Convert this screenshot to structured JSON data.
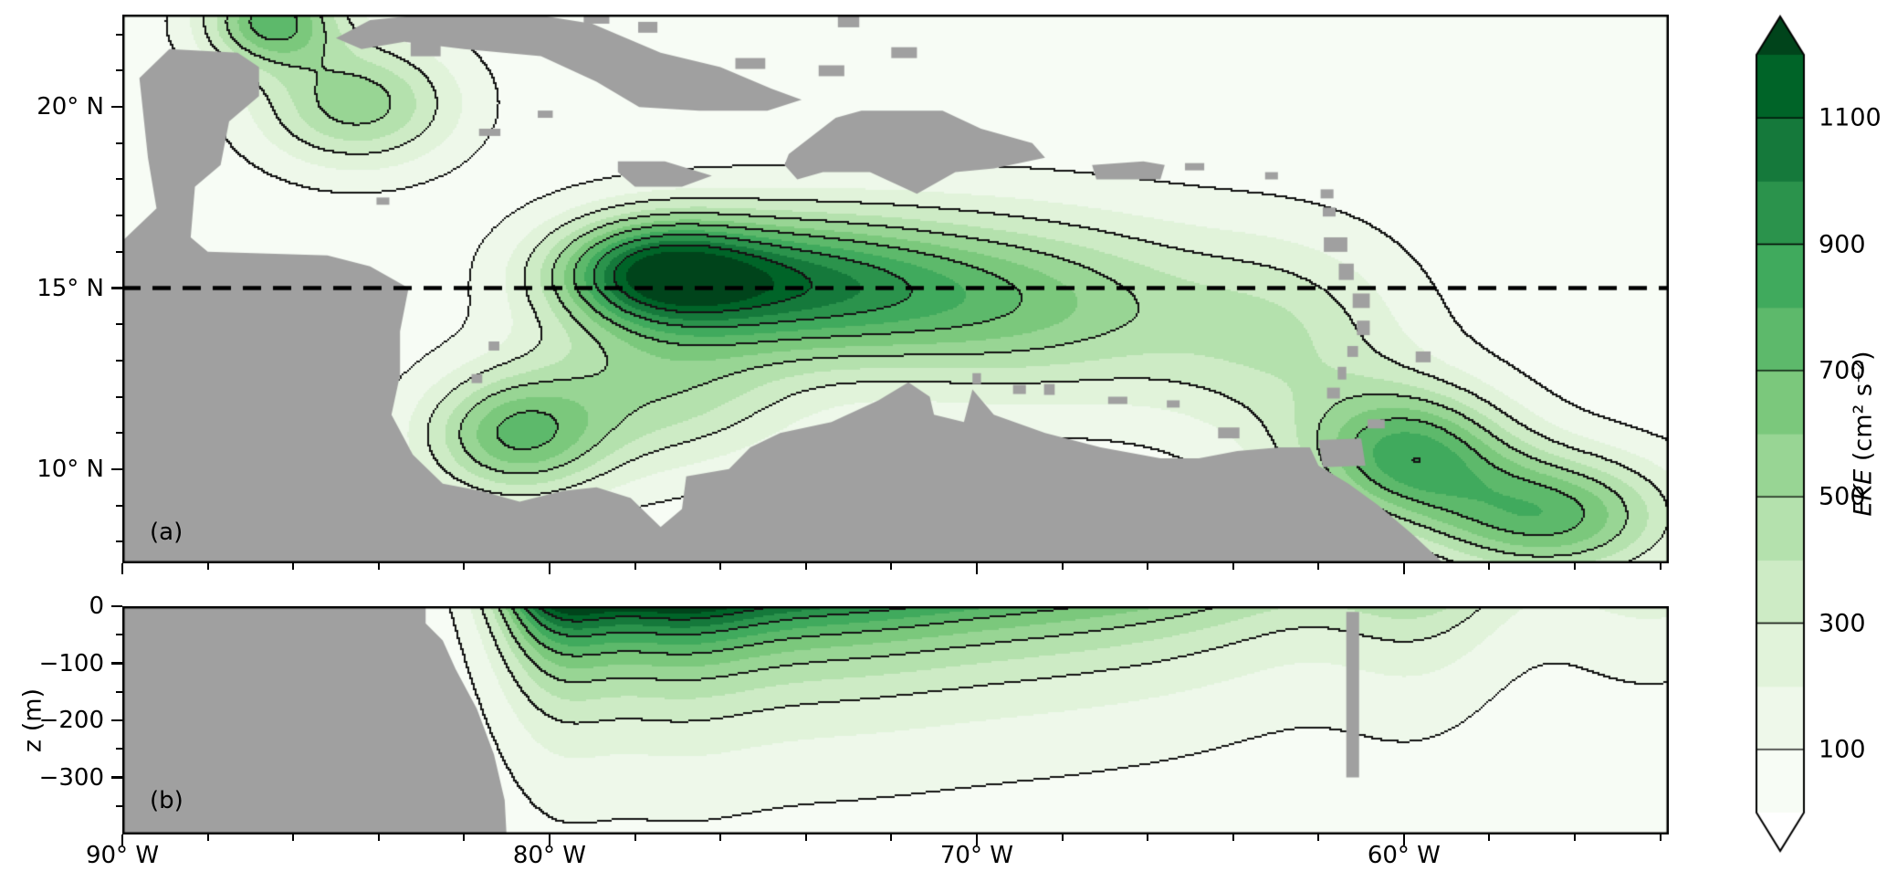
{
  "panels": {
    "a_label": "(a)",
    "b_label": "(b)"
  },
  "axes": {
    "section_y_label": "z (m)"
  },
  "colorbar": {
    "label_variable": "EKE",
    "label_units": " (cm²  s⁻²)",
    "tick_values": [
      1100,
      900,
      700,
      500,
      300,
      100
    ],
    "tick_labels": [
      "1100",
      "900",
      "700",
      "500",
      "300",
      "100"
    ],
    "value_range": [
      0,
      1200
    ],
    "band_colors": [
      "#f7fcf5",
      "#eef8ea",
      "#e1f3da",
      "#cdebc5",
      "#b4e1ad",
      "#98d594",
      "#7bc87c",
      "#5db96b",
      "#40aa5d",
      "#2b934c",
      "#15793b",
      "#006428"
    ],
    "over_color": "#00441b",
    "under_color": "#ffffff",
    "land_color": "#a0a0a0",
    "contour_line_color": "#141414"
  },
  "chart_data": [
    {
      "id": "map",
      "type": "heatmap",
      "title": "(a)",
      "description": "Surface eddy kinetic energy (cm2 s-2) in the Caribbean Sea; dashed line marks the 15N section of panel b",
      "lon_range": [
        -90,
        -53.8
      ],
      "lat_range": [
        7.4,
        22.55
      ],
      "x_ticks": [
        {
          "lon": -90,
          "label": "90° W"
        },
        {
          "lon": -80,
          "label": "80° W"
        },
        {
          "lon": -70,
          "label": "70° W"
        },
        {
          "lon": -60,
          "label": "60° W"
        }
      ],
      "x_minor_step_deg": 2,
      "y_ticks": [
        {
          "lat": 20,
          "label": "20° N"
        },
        {
          "lat": 15,
          "label": "15° N"
        },
        {
          "lat": 10,
          "label": "10° N"
        }
      ],
      "y_minor_step_deg": 1,
      "dashed_line_lat": 15,
      "contour_line_levels": [
        100,
        300,
        500,
        700,
        900,
        1100
      ],
      "background_eke": 40,
      "eke_blobs": [
        {
          "lon": -77.6,
          "lat": 15.45,
          "amp": 850,
          "sx": 1.7,
          "sy": 1.05
        },
        {
          "lon": -75.0,
          "lat": 15.2,
          "amp": 650,
          "sx": 2.5,
          "sy": 1.3
        },
        {
          "lon": -71.5,
          "lat": 14.8,
          "amp": 500,
          "sx": 3.0,
          "sy": 1.6
        },
        {
          "lon": -67.3,
          "lat": 14.4,
          "amp": 330,
          "sx": 3.0,
          "sy": 1.8
        },
        {
          "lon": -84.5,
          "lat": 20.1,
          "amp": 520,
          "sx": 1.6,
          "sy": 1.2
        },
        {
          "lon": -86.5,
          "lat": 22.4,
          "amp": 700,
          "sx": 1.1,
          "sy": 0.9
        },
        {
          "lon": -80.8,
          "lat": 10.9,
          "amp": 620,
          "sx": 1.5,
          "sy": 1.2
        },
        {
          "lon": -77.4,
          "lat": 12.2,
          "amp": 400,
          "sx": 2.2,
          "sy": 1.5
        },
        {
          "lon": -59.9,
          "lat": 10.4,
          "amp": 750,
          "sx": 1.7,
          "sy": 1.3
        },
        {
          "lon": -56.6,
          "lat": 8.7,
          "amp": 700,
          "sx": 2.0,
          "sy": 1.2
        },
        {
          "lon": -62.6,
          "lat": 13.4,
          "amp": 280,
          "sx": 2.0,
          "sy": 2.0
        }
      ],
      "land": {
        "polygons": [
          [
            [
              -90,
              16.3
            ],
            [
              -89.2,
              17.2
            ],
            [
              -89.4,
              18.6
            ],
            [
              -89.6,
              20.8
            ],
            [
              -88.9,
              21.6
            ],
            [
              -87.3,
              21.5
            ],
            [
              -86.8,
              21.1
            ],
            [
              -86.8,
              20.3
            ],
            [
              -87.5,
              19.6
            ],
            [
              -87.7,
              18.4
            ],
            [
              -88.3,
              17.8
            ],
            [
              -88.4,
              16.4
            ],
            [
              -88,
              16
            ],
            [
              -85.2,
              15.9
            ],
            [
              -84.2,
              15.6
            ],
            [
              -83.3,
              15
            ],
            [
              -83.5,
              13.8
            ],
            [
              -83.5,
              12.6
            ],
            [
              -83.7,
              11.5
            ],
            [
              -83.2,
              10.4
            ],
            [
              -82.5,
              9.6
            ],
            [
              -81.6,
              9.4
            ],
            [
              -80.7,
              9.1
            ],
            [
              -79.7,
              9.4
            ],
            [
              -78.9,
              9.5
            ],
            [
              -78.1,
              9.2
            ],
            [
              -77.4,
              8.4
            ],
            [
              -76.9,
              8.9
            ],
            [
              -76.8,
              9.8
            ],
            [
              -75.8,
              10
            ],
            [
              -75.3,
              10.6
            ],
            [
              -74.6,
              11
            ],
            [
              -73.4,
              11.3
            ],
            [
              -72.3,
              11.9
            ],
            [
              -71.6,
              12.4
            ],
            [
              -71.1,
              12
            ],
            [
              -71,
              11.5
            ],
            [
              -70.3,
              11.3
            ],
            [
              -70.1,
              12.2
            ],
            [
              -69.6,
              11.5
            ],
            [
              -68.4,
              11
            ],
            [
              -67.1,
              10.6
            ],
            [
              -65.7,
              10.3
            ],
            [
              -64.8,
              10.3
            ],
            [
              -63.9,
              10.5
            ],
            [
              -62.9,
              10.6
            ],
            [
              -62.2,
              10.6
            ],
            [
              -62,
              10.1
            ],
            [
              -61.3,
              9.6
            ],
            [
              -60.6,
              9
            ],
            [
              -59.8,
              8.2
            ],
            [
              -58.8,
              7.1
            ],
            [
              -57.8,
              6.2
            ],
            [
              -56.5,
              5.7
            ],
            [
              -54,
              5.3
            ],
            [
              -53.5,
              4
            ],
            [
              -90,
              4
            ]
          ],
          [
            [
              -85,
              21.9
            ],
            [
              -84.2,
              22.4
            ],
            [
              -82.5,
              22.6
            ],
            [
              -80.6,
              22.6
            ],
            [
              -79,
              22.3
            ],
            [
              -77.4,
              21.5
            ],
            [
              -76,
              21.1
            ],
            [
              -74.8,
              20.5
            ],
            [
              -74.1,
              20.2
            ],
            [
              -74.9,
              19.9
            ],
            [
              -76.5,
              19.9
            ],
            [
              -77.9,
              20
            ],
            [
              -78.9,
              20.7
            ],
            [
              -80.2,
              21.4
            ],
            [
              -82,
              21.6
            ],
            [
              -83.4,
              21.8
            ],
            [
              -84.4,
              21.6
            ]
          ],
          [
            [
              -74.5,
              18.4
            ],
            [
              -74.4,
              18.7
            ],
            [
              -73.3,
              19.7
            ],
            [
              -72.7,
              19.9
            ],
            [
              -71.7,
              19.9
            ],
            [
              -70.8,
              19.9
            ],
            [
              -69.9,
              19.4
            ],
            [
              -68.7,
              19
            ],
            [
              -68.4,
              18.6
            ],
            [
              -69.6,
              18.3
            ],
            [
              -70.5,
              18.2
            ],
            [
              -71.4,
              17.6
            ],
            [
              -72.5,
              18.2
            ],
            [
              -73.6,
              18.2
            ],
            [
              -74.2,
              18
            ]
          ],
          [
            [
              -78.4,
              18.5
            ],
            [
              -77.3,
              18.5
            ],
            [
              -76.2,
              18.1
            ],
            [
              -76.9,
              17.8
            ],
            [
              -78,
              17.8
            ],
            [
              -78.4,
              18.2
            ]
          ],
          [
            [
              -67.3,
              18.4
            ],
            [
              -66.1,
              18.5
            ],
            [
              -65.6,
              18.4
            ],
            [
              -65.7,
              18
            ],
            [
              -67.2,
              18
            ]
          ],
          [
            [
              -62,
              10.8
            ],
            [
              -61,
              10.85
            ],
            [
              -60.9,
              10.1
            ],
            [
              -61.9,
              10.05
            ]
          ]
        ],
        "islets": [
          [
            -81.4,
            19.3,
            0.5,
            0.2
          ],
          [
            -80.1,
            19.8,
            0.35,
            0.2
          ],
          [
            -83.9,
            17.4,
            0.3,
            0.2
          ],
          [
            -81.7,
            12.5,
            0.25,
            0.25
          ],
          [
            -81.3,
            13.4,
            0.25,
            0.25
          ],
          [
            -78.9,
            22.45,
            0.6,
            0.3
          ],
          [
            -77.7,
            22.2,
            0.45,
            0.3
          ],
          [
            -75.3,
            21.2,
            0.7,
            0.3
          ],
          [
            -73.4,
            21,
            0.6,
            0.3
          ],
          [
            -71.7,
            21.5,
            0.6,
            0.3
          ],
          [
            -73,
            22.35,
            0.5,
            0.3
          ],
          [
            -82.9,
            21.6,
            0.7,
            0.4
          ],
          [
            -64.9,
            18.35,
            0.45,
            0.2
          ],
          [
            -63.1,
            18.1,
            0.3,
            0.2
          ],
          [
            -61.8,
            17.6,
            0.3,
            0.25
          ],
          [
            -61.75,
            17.1,
            0.3,
            0.25
          ],
          [
            -61.6,
            16.2,
            0.55,
            0.4
          ],
          [
            -61.35,
            15.45,
            0.35,
            0.45
          ],
          [
            -61,
            14.65,
            0.4,
            0.4
          ],
          [
            -60.95,
            13.9,
            0.3,
            0.4
          ],
          [
            -61.2,
            13.25,
            0.25,
            0.3
          ],
          [
            -61.45,
            12.65,
            0.2,
            0.35
          ],
          [
            -61.65,
            12.1,
            0.3,
            0.3
          ],
          [
            -59.55,
            13.1,
            0.35,
            0.3
          ],
          [
            -60.65,
            11.25,
            0.4,
            0.25
          ],
          [
            -64.1,
            11,
            0.5,
            0.3
          ],
          [
            -70,
            12.5,
            0.2,
            0.3
          ],
          [
            -69,
            12.2,
            0.3,
            0.25
          ],
          [
            -68.3,
            12.2,
            0.25,
            0.3
          ],
          [
            -66.7,
            11.9,
            0.45,
            0.2
          ],
          [
            -65.4,
            11.8,
            0.3,
            0.2
          ]
        ]
      }
    },
    {
      "id": "section",
      "type": "heatmap",
      "title": "(b)",
      "description": "Vertical section of EKE along 15N; surface-intensified, decaying with depth",
      "lon_range": [
        -90,
        -53.8
      ],
      "z_range": [
        0,
        -400
      ],
      "y_ticks": [
        {
          "z": 0,
          "label": "0"
        },
        {
          "z": -100,
          "label": "−100"
        },
        {
          "z": -200,
          "label": "−200"
        },
        {
          "z": -300,
          "label": "−300"
        }
      ],
      "y_minor_values": [
        -50,
        -150,
        -250,
        -350
      ],
      "contour_line_levels": [
        100,
        300,
        500,
        700,
        900,
        1100
      ],
      "background_eke": 30,
      "decay_scale_m": 130,
      "surface_blobs": [
        {
          "lon": -79.9,
          "amp": 800,
          "sig": 1.0
        },
        {
          "lon": -77.5,
          "amp": 950,
          "sig": 1.8
        },
        {
          "lon": -74.0,
          "amp": 700,
          "sig": 2.5
        },
        {
          "lon": -69.5,
          "amp": 550,
          "sig": 3.0
        },
        {
          "lon": -64.5,
          "amp": 350,
          "sig": 3.0
        },
        {
          "lon": -59.6,
          "amp": 330,
          "sig": 1.5
        },
        {
          "lon": -54.2,
          "amp": 200,
          "sig": 2.0
        }
      ],
      "mask_polygon": [
        [
          -90,
          10
        ],
        [
          -82.9,
          10
        ],
        [
          -82.9,
          -30
        ],
        [
          -82.5,
          -60
        ],
        [
          -82.2,
          -110
        ],
        [
          -81.7,
          -180
        ],
        [
          -81.3,
          -260
        ],
        [
          -81.05,
          -340
        ],
        [
          -81,
          -410
        ],
        [
          -90,
          -410
        ]
      ],
      "island_strip": {
        "lon": [
          -61.35,
          -61.05
        ],
        "z": [
          -10,
          -300
        ]
      }
    }
  ]
}
